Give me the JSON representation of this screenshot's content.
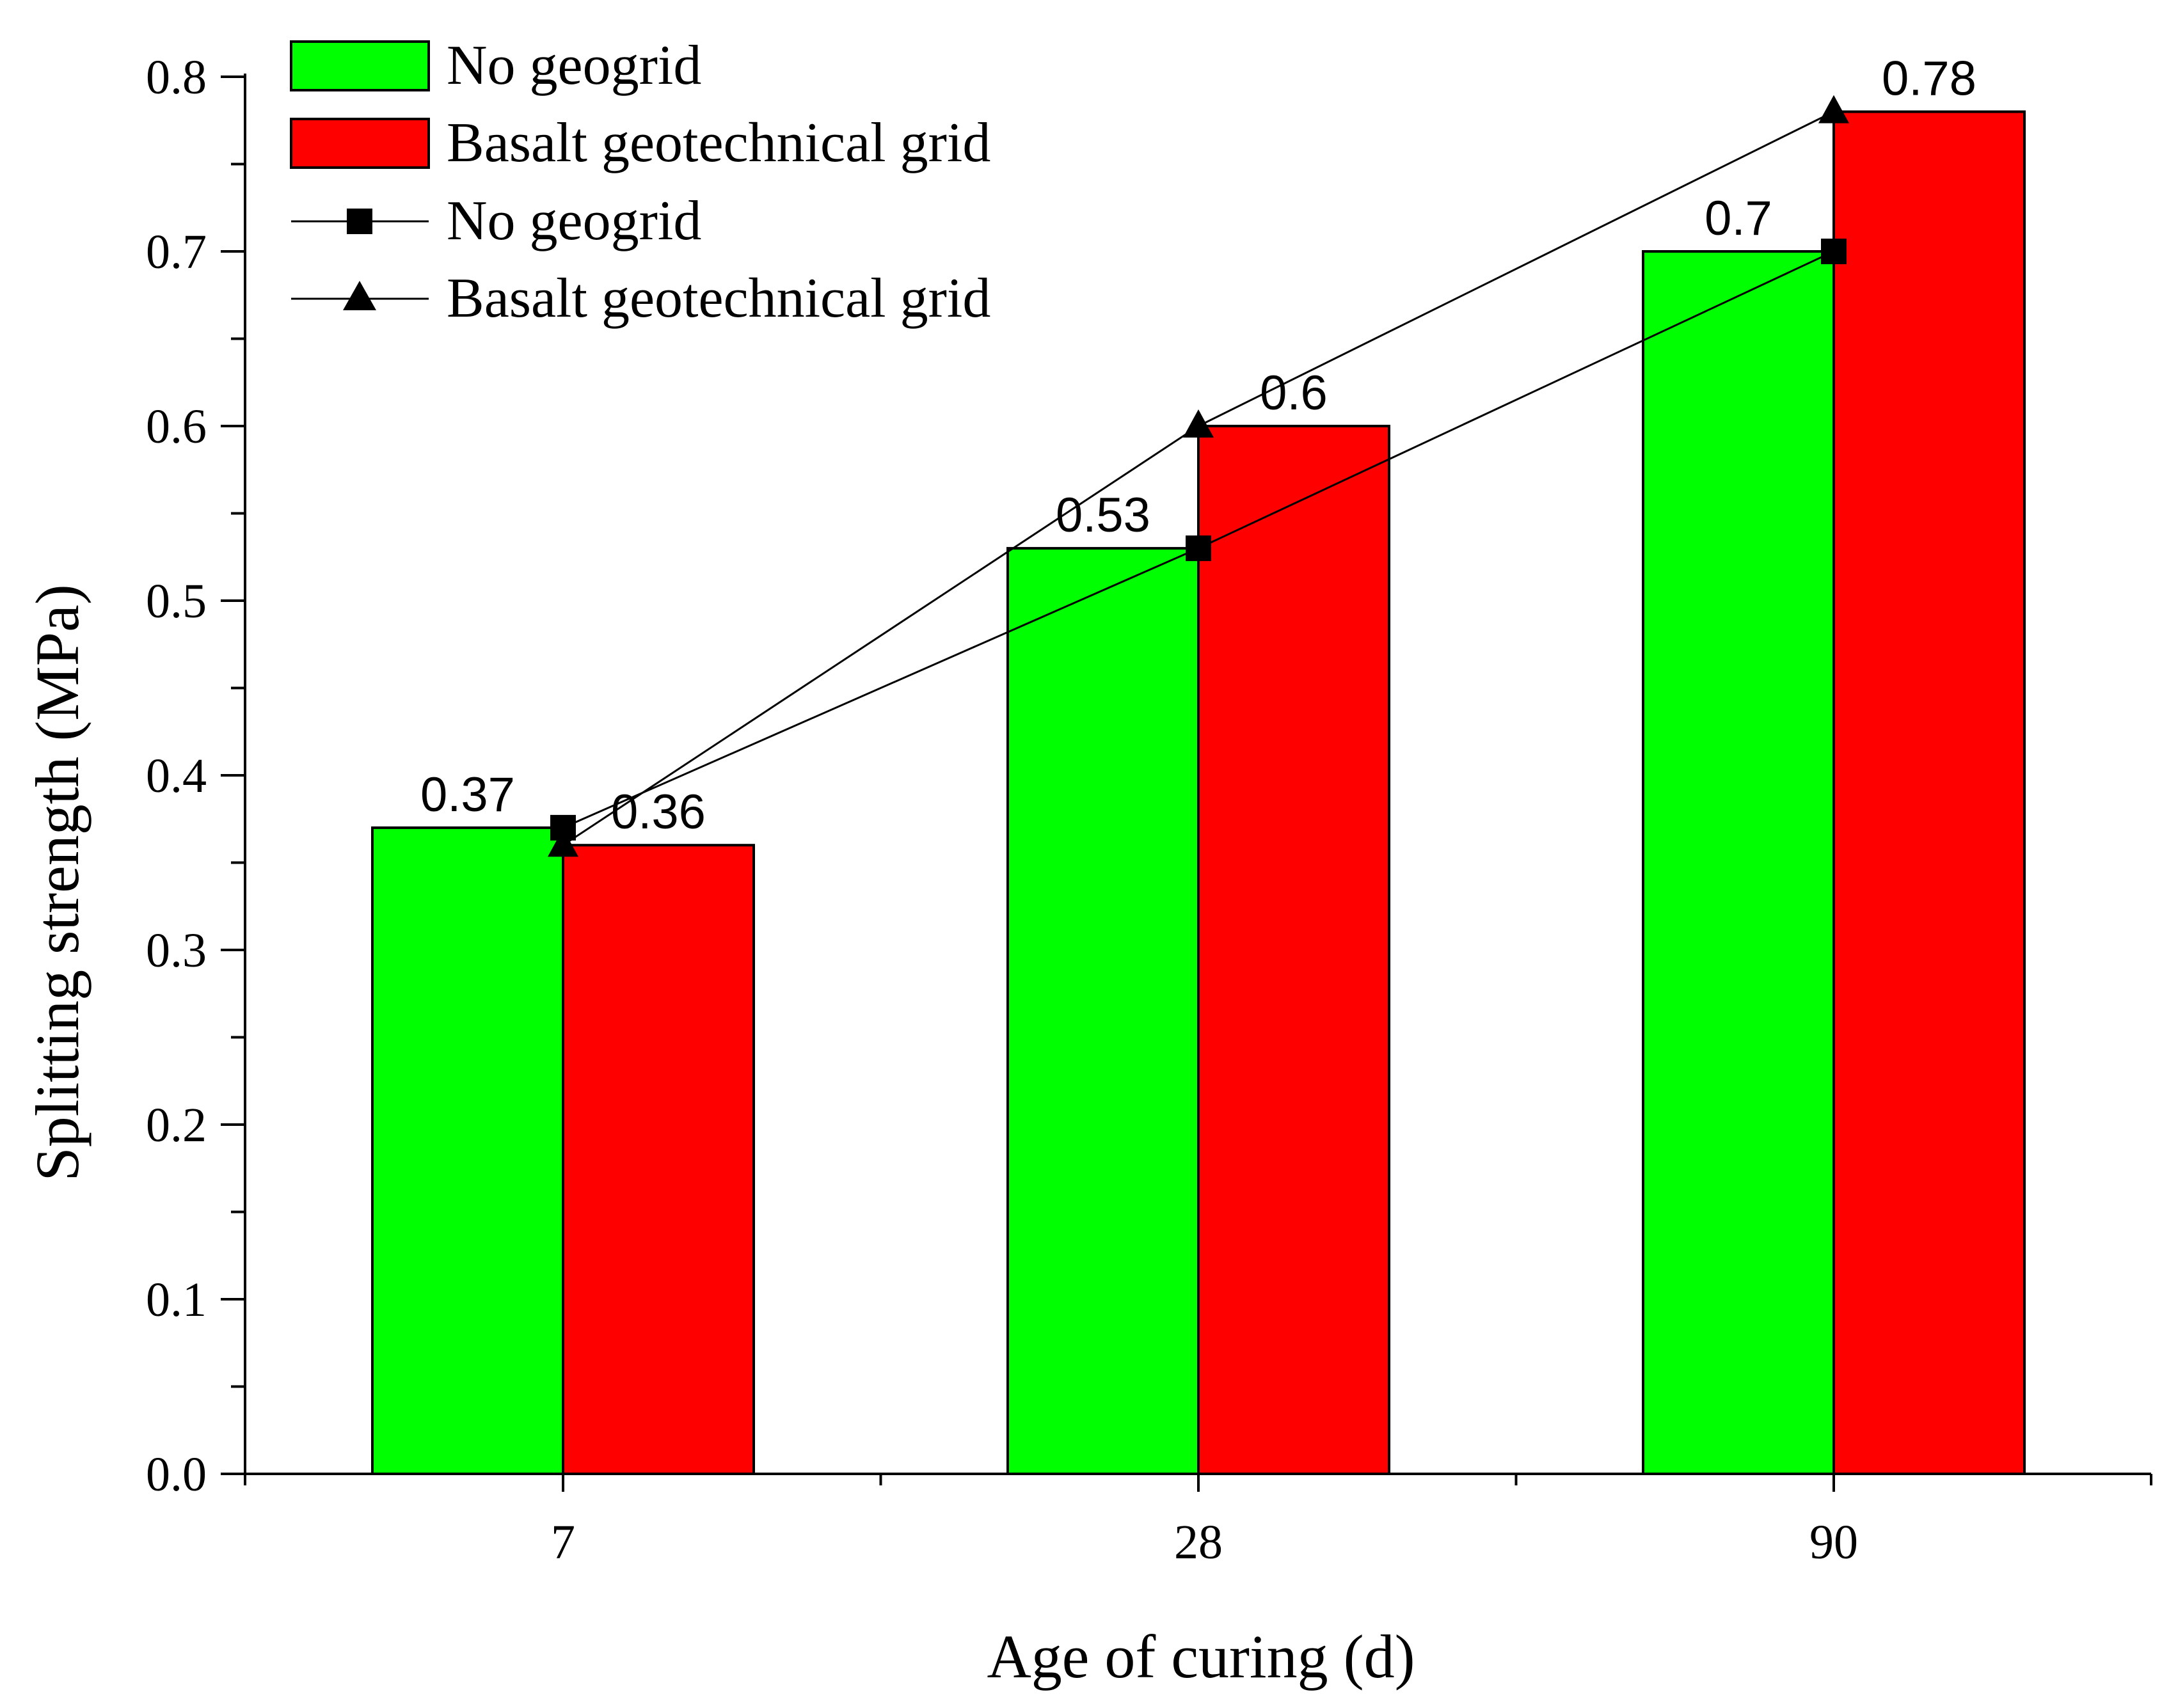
{
  "chart_data": {
    "type": "bar",
    "xlabel": "Age of curing (d)",
    "ylabel": "Splitting strength (MPa)",
    "categories": [
      "7",
      "28",
      "90"
    ],
    "ylim": [
      0.0,
      0.8
    ],
    "yticks": [
      "0.0",
      "0.1",
      "0.2",
      "0.3",
      "0.4",
      "0.5",
      "0.6",
      "0.7",
      "0.8"
    ],
    "series": [
      {
        "name": "No geogrid",
        "values": [
          0.37,
          0.53,
          0.7
        ],
        "labels": [
          "0.37",
          "0.53",
          "0.7"
        ],
        "color": "#00ff00"
      },
      {
        "name": "Basalt geotechnical grid",
        "values": [
          0.36,
          0.6,
          0.78
        ],
        "labels": [
          "0.36",
          "0.6",
          "0.78"
        ],
        "color": "#ff0000"
      }
    ],
    "line_series": [
      {
        "name": "No geogrid",
        "marker": "square",
        "values": [
          0.37,
          0.53,
          0.7
        ]
      },
      {
        "name": "Basalt geotechnical grid",
        "marker": "triangle",
        "values": [
          0.36,
          0.6,
          0.78
        ]
      }
    ],
    "legend_position": "top-left",
    "grid": false
  }
}
